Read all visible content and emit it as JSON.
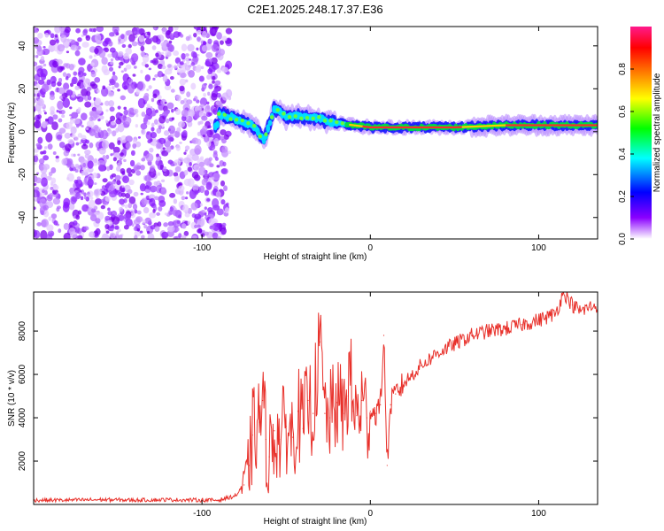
{
  "figure_title": "C2E1.2025.248.17.37.E36",
  "chart_data": [
    {
      "type": "heatmap",
      "title": "C2E1.2025.248.17.37.E36",
      "xlabel": "Height of straight line (km)",
      "ylabel": "Frequency (Hz)",
      "xlim": [
        -200,
        135
      ],
      "ylim": [
        -50,
        49
      ],
      "xticks": [
        -100,
        0,
        100
      ],
      "yticks": [
        -40,
        -20,
        0,
        20,
        40
      ],
      "colorbar": {
        "label": "Normalized spectral amplitude",
        "range": [
          0,
          1
        ],
        "ticks": [
          0.0,
          0.2,
          0.4,
          0.6,
          0.8
        ],
        "stops": [
          "#ffffff",
          "#8a00ff",
          "#0000ff",
          "#00ffff",
          "#00ff00",
          "#ffff00",
          "#ff7f00",
          "#ff0000",
          "#ff1a8c"
        ]
      },
      "ridge": [
        {
          "x": -90,
          "f": 8
        },
        {
          "x": -80,
          "f": 6
        },
        {
          "x": -70,
          "f": 3
        },
        {
          "x": -63,
          "f": -4
        },
        {
          "x": -57,
          "f": 11
        },
        {
          "x": -50,
          "f": 7
        },
        {
          "x": -40,
          "f": 7
        },
        {
          "x": -30,
          "f": 6
        },
        {
          "x": -20,
          "f": 4
        },
        {
          "x": -10,
          "f": 3
        },
        {
          "x": 0,
          "f": 2
        },
        {
          "x": 20,
          "f": 2
        },
        {
          "x": 50,
          "f": 2
        },
        {
          "x": 80,
          "f": 3
        },
        {
          "x": 100,
          "f": 3
        },
        {
          "x": 135,
          "f": 3
        }
      ],
      "noise_region_x": [
        -200,
        -83
      ]
    },
    {
      "type": "line",
      "xlabel": "Height of straight line (km)",
      "ylabel": "SNR (10 * v/v)",
      "xlim": [
        -200,
        135
      ],
      "ylim": [
        0,
        9800
      ],
      "xticks": [
        -100,
        0,
        100
      ],
      "yticks": [
        2000,
        4000,
        6000,
        8000
      ],
      "color": "#e8302a",
      "series": [
        {
          "name": "SNR",
          "x": [
            -200,
            -180,
            -160,
            -140,
            -120,
            -100,
            -90,
            -80,
            -75,
            -72,
            -70,
            -66,
            -64,
            -62,
            -60,
            -57,
            -54,
            -50,
            -46,
            -43,
            -40,
            -37,
            -34,
            -30,
            -27,
            -24,
            -20,
            -16,
            -14,
            -12,
            -10,
            -8,
            -5,
            -2,
            0,
            3,
            6,
            8,
            10,
            12,
            15,
            20,
            25,
            30,
            40,
            50,
            60,
            70,
            80,
            90,
            100,
            110,
            115,
            120,
            125,
            130,
            135
          ],
          "y": [
            200,
            200,
            220,
            200,
            220,
            200,
            200,
            400,
            900,
            1800,
            3200,
            3800,
            4800,
            3000,
            2200,
            3400,
            3000,
            3600,
            3100,
            4300,
            3500,
            4800,
            4200,
            7500,
            4200,
            4000,
            4700,
            4200,
            5000,
            6000,
            4300,
            4100,
            4800,
            4000,
            4300,
            4200,
            4600,
            7800,
            1800,
            4600,
            5100,
            5600,
            6000,
            6400,
            7000,
            7400,
            7800,
            8000,
            8100,
            8300,
            8500,
            8800,
            9800,
            9200,
            8900,
            9100,
            9200
          ]
        }
      ]
    }
  ]
}
